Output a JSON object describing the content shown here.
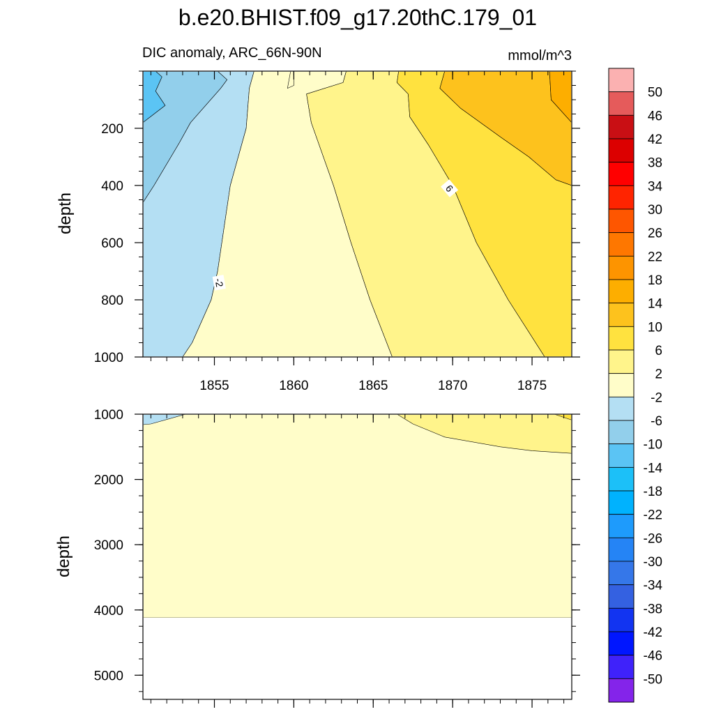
{
  "figure": {
    "title": "b.e20.BHIST.f09_g17.20thC.179_01",
    "subtitle_left": "DIC anomaly, ARC_66N-90N",
    "subtitle_right": "mmol/m^3"
  },
  "colors": {
    "grey_bg": "#ffffff",
    "contour_line": "#000000"
  },
  "chart_data": [
    {
      "type": "contour",
      "panel": "upper",
      "ylabel": "depth",
      "xlim": [
        1850.5,
        1877.5
      ],
      "ylim": [
        1000,
        0
      ],
      "x_ticks": [
        1855,
        1860,
        1865,
        1870,
        1875
      ],
      "x_tick_labels": [
        "1855",
        "1860",
        "1865",
        "1870",
        "1875"
      ],
      "y_ticks": [
        200,
        400,
        600,
        800,
        1000
      ],
      "y_tick_labels": [
        "200",
        "400",
        "600",
        "800",
        "1000"
      ],
      "regions": [
        {
          "level": "-14",
          "color": "#5bc4f4",
          "outline": [
            [
              1850.5,
              0
            ],
            [
              1851.3,
              0
            ],
            [
              1851.7,
              20
            ],
            [
              1851.3,
              70
            ],
            [
              1851.9,
              120
            ],
            [
              1850.5,
              180
            ]
          ]
        },
        {
          "level": "-10",
          "color": "#92cfeb",
          "outline": [
            [
              1851.3,
              0
            ],
            [
              1855.2,
              0
            ],
            [
              1855.8,
              30
            ],
            [
              1855.4,
              60
            ],
            [
              1853.5,
              180
            ],
            [
              1852.8,
              250
            ],
            [
              1851.2,
              400
            ],
            [
              1850.5,
              460
            ],
            [
              1850.5,
              180
            ],
            [
              1851.9,
              120
            ],
            [
              1851.3,
              70
            ],
            [
              1851.7,
              20
            ]
          ]
        },
        {
          "level": "-6",
          "color": "#b4dff3",
          "outline": [
            [
              1855.2,
              0
            ],
            [
              1857.5,
              0
            ],
            [
              1857.2,
              60
            ],
            [
              1857.0,
              200
            ],
            [
              1856.0,
              400
            ],
            [
              1855.6,
              550
            ],
            [
              1855.2,
              700
            ],
            [
              1854.8,
              800
            ],
            [
              1853.6,
              950
            ],
            [
              1853.0,
              1000
            ],
            [
              1850.5,
              1000
            ],
            [
              1850.5,
              460
            ],
            [
              1851.2,
              400
            ],
            [
              1852.8,
              250
            ],
            [
              1853.5,
              180
            ],
            [
              1855.4,
              60
            ],
            [
              1855.8,
              30
            ]
          ]
        },
        {
          "level": "-2",
          "color": "#fffdc9",
          "outline": [
            [
              1857.5,
              0
            ],
            [
              1860.0,
              0
            ],
            [
              1860.0,
              50
            ],
            [
              1859.6,
              60
            ],
            [
              1859.8,
              0
            ],
            [
              1863.3,
              0
            ],
            [
              1863.1,
              40
            ],
            [
              1860.8,
              80
            ],
            [
              1861.1,
              180
            ],
            [
              1862.5,
              400
            ],
            [
              1863.6,
              600
            ],
            [
              1864.8,
              800
            ],
            [
              1866.2,
              1000
            ],
            [
              1853.0,
              1000
            ],
            [
              1853.6,
              950
            ],
            [
              1854.8,
              800
            ],
            [
              1855.2,
              700
            ],
            [
              1855.6,
              550
            ],
            [
              1856.0,
              400
            ],
            [
              1857.0,
              200
            ],
            [
              1857.2,
              60
            ]
          ]
        },
        {
          "level": "2",
          "color": "#fff48b",
          "outline": [
            [
              1863.3,
              0
            ],
            [
              1866.6,
              0
            ],
            [
              1866.5,
              40
            ],
            [
              1867.2,
              80
            ],
            [
              1867.3,
              160
            ],
            [
              1868.5,
              260
            ],
            [
              1870.0,
              400
            ],
            [
              1871.5,
              600
            ],
            [
              1873.5,
              800
            ],
            [
              1875.8,
              1000
            ],
            [
              1866.2,
              1000
            ],
            [
              1864.8,
              800
            ],
            [
              1863.6,
              600
            ],
            [
              1862.5,
              400
            ],
            [
              1861.1,
              180
            ],
            [
              1860.8,
              80
            ],
            [
              1863.1,
              40
            ]
          ]
        },
        {
          "level": "6",
          "color": "#ffe23f",
          "outline": [
            [
              1866.6,
              0
            ],
            [
              1869.5,
              0
            ],
            [
              1869.2,
              60
            ],
            [
              1870.5,
              130
            ],
            [
              1873.0,
              230
            ],
            [
              1874.8,
              300
            ],
            [
              1876.5,
              380
            ],
            [
              1877.5,
              400
            ],
            [
              1877.5,
              1000
            ],
            [
              1875.8,
              1000
            ],
            [
              1873.5,
              800
            ],
            [
              1871.5,
              600
            ],
            [
              1870.0,
              400
            ],
            [
              1868.5,
              260
            ],
            [
              1867.3,
              160
            ],
            [
              1867.2,
              80
            ],
            [
              1866.5,
              40
            ]
          ]
        },
        {
          "level": "10",
          "color": "#fdc21d",
          "outline": [
            [
              1869.5,
              0
            ],
            [
              1876.1,
              0
            ],
            [
              1876.2,
              100
            ],
            [
              1877.5,
              180
            ],
            [
              1877.5,
              400
            ],
            [
              1876.5,
              380
            ],
            [
              1874.8,
              300
            ],
            [
              1873.0,
              230
            ],
            [
              1870.5,
              130
            ],
            [
              1869.2,
              60
            ]
          ]
        },
        {
          "level": "14",
          "color": "#fdae00",
          "outline": [
            [
              1876.1,
              0
            ],
            [
              1877.5,
              0
            ],
            [
              1877.5,
              180
            ],
            [
              1876.2,
              100
            ]
          ]
        }
      ],
      "contour_labels": [
        {
          "text": "-2",
          "x": 1855.3,
          "y": 740
        },
        {
          "text": "6",
          "x": 1869.8,
          "y": 410
        }
      ]
    },
    {
      "type": "contour",
      "panel": "lower",
      "ylabel": "depth",
      "xlim": [
        1850.5,
        1877.5
      ],
      "ylim": [
        5370,
        1000
      ],
      "y_ticks": [
        1000,
        2000,
        3000,
        4000,
        5000
      ],
      "y_tick_labels": [
        "1000",
        "2000",
        "3000",
        "4000",
        "5000"
      ],
      "missing_below_depth": 4120,
      "regions": [
        {
          "level": "-2",
          "color": "#fffdc9",
          "outline": [
            [
              1850.5,
              1000
            ],
            [
              1877.5,
              1000
            ],
            [
              1877.5,
              4120
            ],
            [
              1850.5,
              4120
            ]
          ]
        },
        {
          "level": "2",
          "color": "#fff48b",
          "outline": [
            [
              1866.5,
              1000
            ],
            [
              1877.5,
              1000
            ],
            [
              1877.5,
              1600
            ],
            [
              1875.0,
              1560
            ],
            [
              1873.0,
              1500
            ],
            [
              1869.5,
              1350
            ],
            [
              1867.5,
              1150
            ]
          ]
        },
        {
          "level": "6",
          "color": "#ffe23f",
          "outline": [
            [
              1876.4,
              1000
            ],
            [
              1877.5,
              1000
            ],
            [
              1877.5,
              1090
            ]
          ]
        },
        {
          "level": "-6",
          "color": "#b4dff3",
          "outline": [
            [
              1850.5,
              1000
            ],
            [
              1853.2,
              1000
            ],
            [
              1851.0,
              1150
            ],
            [
              1850.5,
              1160
            ]
          ]
        }
      ]
    }
  ],
  "colorbar": {
    "levels": [
      "50",
      "46",
      "42",
      "38",
      "34",
      "30",
      "26",
      "22",
      "18",
      "14",
      "10",
      "6",
      "2",
      "-2",
      "-6",
      "-10",
      "-14",
      "-18",
      "-22",
      "-26",
      "-30",
      "-34",
      "-38",
      "-42",
      "-46",
      "-50"
    ],
    "colors_top_to_bottom": [
      "#fbb1b1",
      "#e55b5b",
      "#c90f14",
      "#dc0000",
      "#ff0000",
      "#ff2400",
      "#fe5600",
      "#fe7700",
      "#fd9400",
      "#fdae00",
      "#fdc21d",
      "#ffe23f",
      "#fff48b",
      "#fffdc9",
      "#b4dff3",
      "#92cfeb",
      "#5bc4f4",
      "#1cc0f8",
      "#00b2fe",
      "#1e9bfc",
      "#2584f5",
      "#3577e9",
      "#3461e1",
      "#1234f1",
      "#0016ff",
      "#3f22fa",
      "#8424ea"
    ]
  }
}
